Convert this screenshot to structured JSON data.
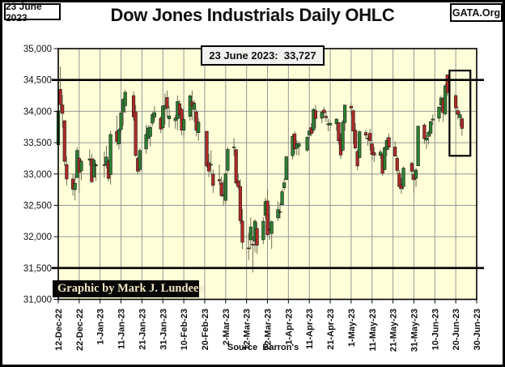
{
  "header": {
    "date_box": "23 June 2023",
    "brand": "GATA.Org",
    "title": "Dow Jones Industrials Daily OHLC"
  },
  "footer": {
    "credit": "Graphic by Mark J. Lundeen",
    "source": "Source  Barron's"
  },
  "chart_data": {
    "type": "ohlc",
    "title": "Dow Jones Industrials Daily OHLC",
    "callout": "23 June 2023:  33,727",
    "last_value": 33727,
    "ylim": [
      31000,
      35000
    ],
    "y_tick_step": 500,
    "y_ticks": [
      "35,000",
      "34,500",
      "34,000",
      "33,500",
      "33,000",
      "32,500",
      "32,000",
      "31,500",
      "31,000"
    ],
    "x_ticks": [
      "12-Dec-22",
      "22-Dec-22",
      "1-Jan-23",
      "11-Jan-23",
      "21-Jan-23",
      "31-Jan-23",
      "10-Feb-23",
      "20-Feb-23",
      "2-Mar-23",
      "12-Mar-23",
      "22-Mar-23",
      "1-Apr-23",
      "11-Apr-23",
      "21-Apr-23",
      "1-May-23",
      "11-May-23",
      "21-May-23",
      "31-May-23",
      "10-Jun-23",
      "20-Jun-23",
      "30-Jun-23"
    ],
    "x_range": [
      "12-Dec-22",
      "30-Jun-23"
    ],
    "grid": true,
    "hlines": [
      34500,
      31500
    ],
    "highlight_box": {
      "date1": "17-Jun-23",
      "date2": "27-Jun-23",
      "value1": 34650,
      "value2": 33290
    },
    "colors": {
      "plot_bg": "#FEFED8",
      "grid": "#969696",
      "frame": "#000000",
      "up": "#2E8032",
      "down": "#AF2B26",
      "wick": "#6E6E58",
      "body_outline": "#1A1A1A",
      "callout_bg": "#F1F1EF",
      "credit_bg": "#050505",
      "credit_fg": "#EFE7C2"
    },
    "candles": [
      [
        "12-Dec-22",
        33465,
        34060,
        33410,
        34005
      ],
      [
        "13-Dec-22",
        34350,
        34712,
        33980,
        34108
      ],
      [
        "14-Dec-22",
        34100,
        34260,
        33740,
        33966
      ],
      [
        "15-Dec-22",
        33850,
        33860,
        33130,
        33202
      ],
      [
        "16-Dec-22",
        33150,
        33280,
        32815,
        32920
      ],
      [
        "19-Dec-22",
        32920,
        33000,
        32655,
        32758
      ],
      [
        "20-Dec-22",
        32750,
        32990,
        32580,
        32850
      ],
      [
        "21-Dec-22",
        32940,
        33430,
        32940,
        33376
      ],
      [
        "22-Dec-22",
        33250,
        33280,
        32700,
        33027
      ],
      [
        "23-Dec-22",
        33050,
        33230,
        32900,
        33204
      ],
      [
        "27-Dec-22",
        33220,
        33390,
        33130,
        33241
      ],
      [
        "28-Dec-22",
        33240,
        33320,
        32860,
        32875
      ],
      [
        "29-Dec-22",
        32950,
        33260,
        32950,
        33221
      ],
      [
        "30-Dec-22",
        33130,
        33180,
        32890,
        33147
      ],
      [
        "3-Jan-23",
        33148,
        33360,
        32940,
        33136
      ],
      [
        "4-Jan-23",
        33150,
        33450,
        33090,
        33270
      ],
      [
        "5-Jan-23",
        33200,
        33230,
        32880,
        32930
      ],
      [
        "6-Jan-23",
        32990,
        33690,
        32830,
        33631
      ],
      [
        "9-Jan-23",
        33680,
        33935,
        33450,
        33517
      ],
      [
        "10-Jan-23",
        33480,
        33730,
        33390,
        33704
      ],
      [
        "11-Jan-23",
        33710,
        34000,
        33660,
        33973
      ],
      [
        "12-Jan-23",
        33990,
        34210,
        33770,
        34190
      ],
      [
        "13-Jan-23",
        34090,
        34342,
        33970,
        34303
      ],
      [
        "17-Jan-23",
        34250,
        34320,
        33850,
        33911
      ],
      [
        "18-Jan-23",
        33990,
        34100,
        33270,
        33297
      ],
      [
        "19-Jan-23",
        33250,
        33290,
        32990,
        33045
      ],
      [
        "20-Jan-23",
        33070,
        33410,
        33020,
        33375
      ],
      [
        "23-Jan-23",
        33400,
        33780,
        33320,
        33630
      ],
      [
        "24-Jan-23",
        33570,
        33780,
        33530,
        33734
      ],
      [
        "25-Jan-23",
        33600,
        33780,
        33440,
        33744
      ],
      [
        "26-Jan-23",
        33810,
        34000,
        33760,
        33949
      ],
      [
        "27-Jan-23",
        33910,
        34080,
        33840,
        33978
      ],
      [
        "30-Jan-23",
        33890,
        33920,
        33650,
        33717
      ],
      [
        "31-Jan-23",
        33740,
        34090,
        33700,
        34086
      ],
      [
        "1-Feb-23",
        34040,
        34280,
        33790,
        34093
      ],
      [
        "2-Feb-23",
        34220,
        34330,
        33900,
        34054
      ],
      [
        "3-Feb-23",
        33880,
        34080,
        33740,
        33926
      ],
      [
        "6-Feb-23",
        33850,
        33940,
        33720,
        33891
      ],
      [
        "7-Feb-23",
        33880,
        34250,
        33700,
        34156
      ],
      [
        "8-Feb-23",
        34120,
        34180,
        33890,
        33949
      ],
      [
        "9-Feb-23",
        34030,
        34060,
        33620,
        33699
      ],
      [
        "10-Feb-23",
        33700,
        33930,
        33590,
        33869
      ],
      [
        "13-Feb-23",
        33920,
        34270,
        33850,
        34246
      ],
      [
        "14-Feb-23",
        34150,
        34331,
        33860,
        34089
      ],
      [
        "15-Feb-23",
        34030,
        34180,
        33830,
        34128
      ],
      [
        "16-Feb-23",
        33990,
        34030,
        33600,
        33697
      ],
      [
        "17-Feb-23",
        33660,
        33890,
        33530,
        33827
      ],
      [
        "21-Feb-23",
        33680,
        33690,
        33100,
        33130
      ],
      [
        "22-Feb-23",
        33180,
        33320,
        32950,
        33045
      ],
      [
        "23-Feb-23",
        33150,
        33380,
        32990,
        33154
      ],
      [
        "24-Feb-23",
        33000,
        33070,
        32700,
        32817
      ],
      [
        "27-Feb-23",
        32910,
        33150,
        32830,
        32889
      ],
      [
        "28-Feb-23",
        32860,
        32960,
        32630,
        32656
      ],
      [
        "1-Mar-23",
        32660,
        32900,
        32500,
        32662
      ],
      [
        "2-Mar-23",
        32580,
        33030,
        32520,
        33003
      ],
      [
        "3-Mar-23",
        33060,
        33430,
        33020,
        33391
      ],
      [
        "6-Mar-23",
        33430,
        33572,
        33290,
        33431
      ],
      [
        "7-Mar-23",
        33390,
        33400,
        32830,
        32856
      ],
      [
        "8-Mar-23",
        32890,
        33000,
        32760,
        32798
      ],
      [
        "9-Mar-23",
        32800,
        32920,
        32200,
        32255
      ],
      [
        "10-Mar-23",
        32250,
        32440,
        31800,
        31910
      ],
      [
        "13-Mar-23",
        31820,
        32060,
        31624,
        31819
      ],
      [
        "14-Mar-23",
        31950,
        32310,
        31800,
        32155
      ],
      [
        "15-Mar-23",
        31880,
        32010,
        31429,
        31875
      ],
      [
        "16-Mar-23",
        31930,
        32280,
        31750,
        32247
      ],
      [
        "17-Mar-23",
        32130,
        32230,
        31727,
        31862
      ],
      [
        "20-Mar-23",
        31950,
        32310,
        31880,
        32245
      ],
      [
        "21-Mar-23",
        32340,
        32620,
        32290,
        32560
      ],
      [
        "22-Mar-23",
        32570,
        32760,
        32010,
        32030
      ],
      [
        "23-Mar-23",
        32120,
        32510,
        31950,
        32105
      ],
      [
        "24-Mar-23",
        32050,
        32260,
        31805,
        32238
      ],
      [
        "27-Mar-23",
        32300,
        32560,
        32250,
        32432
      ],
      [
        "28-Mar-23",
        32400,
        32540,
        32290,
        32394
      ],
      [
        "29-Mar-23",
        32510,
        32760,
        32500,
        32718
      ],
      [
        "30-Mar-23",
        32780,
        32930,
        32740,
        32859
      ],
      [
        "31-Mar-23",
        32910,
        33290,
        32900,
        33274
      ],
      [
        "3-Apr-23",
        33290,
        33640,
        33230,
        33601
      ],
      [
        "4-Apr-23",
        33640,
        33680,
        33320,
        33402
      ],
      [
        "5-Apr-23",
        33410,
        33540,
        33300,
        33483
      ],
      [
        "6-Apr-23",
        33440,
        33520,
        33290,
        33485
      ],
      [
        "10-Apr-23",
        33380,
        33600,
        33350,
        33586
      ],
      [
        "11-Apr-23",
        33620,
        33740,
        33560,
        33685
      ],
      [
        "12-Apr-23",
        33740,
        33810,
        33600,
        33646
      ],
      [
        "13-Apr-23",
        33700,
        34050,
        33660,
        34030
      ],
      [
        "14-Apr-23",
        34010,
        34100,
        33730,
        33886
      ],
      [
        "17-Apr-23",
        33890,
        34010,
        33810,
        33987
      ],
      [
        "18-Apr-23",
        34020,
        34070,
        33900,
        33977
      ],
      [
        "19-Apr-23",
        33920,
        34000,
        33830,
        33897
      ],
      [
        "20-Apr-23",
        33800,
        33880,
        33680,
        33787
      ],
      [
        "21-Apr-23",
        33780,
        33860,
        33690,
        33809
      ],
      [
        "24-Apr-23",
        33800,
        33890,
        33690,
        33875
      ],
      [
        "25-Apr-23",
        33820,
        33830,
        33470,
        33531
      ],
      [
        "26-Apr-23",
        33560,
        33650,
        33240,
        33302
      ],
      [
        "27-Apr-23",
        33380,
        33860,
        33360,
        33826
      ],
      [
        "28-Apr-23",
        33820,
        34110,
        33690,
        34098
      ],
      [
        "1-May-23",
        34080,
        34130,
        33940,
        34052
      ],
      [
        "2-May-23",
        34010,
        34030,
        33480,
        33685
      ],
      [
        "3-May-23",
        33700,
        33810,
        33390,
        33414
      ],
      [
        "4-May-23",
        33360,
        33390,
        33060,
        33128
      ],
      [
        "5-May-23",
        33260,
        33700,
        33260,
        33674
      ],
      [
        "8-May-23",
        33660,
        33710,
        33560,
        33619
      ],
      [
        "9-May-23",
        33570,
        33620,
        33450,
        33562
      ],
      [
        "10-May-23",
        33650,
        33720,
        33380,
        33532
      ],
      [
        "11-May-23",
        33480,
        33530,
        33220,
        33310
      ],
      [
        "12-May-23",
        33340,
        33430,
        33190,
        33301
      ],
      [
        "15-May-23",
        33300,
        33390,
        33240,
        33349
      ],
      [
        "16-May-23",
        33310,
        33330,
        32970,
        33012
      ],
      [
        "17-May-23",
        33070,
        33440,
        33060,
        33421
      ],
      [
        "18-May-23",
        33390,
        33580,
        33290,
        33536
      ],
      [
        "19-May-23",
        33580,
        33650,
        33380,
        33427
      ],
      [
        "22-May-23",
        33430,
        33520,
        33280,
        33286
      ],
      [
        "23-May-23",
        33250,
        33290,
        33010,
        33056
      ],
      [
        "24-May-23",
        33010,
        33060,
        32760,
        32800
      ],
      [
        "25-May-23",
        32830,
        32940,
        32687,
        32765
      ],
      [
        "26-May-23",
        32800,
        33120,
        32750,
        33093
      ],
      [
        "30-May-23",
        33170,
        33200,
        32910,
        33043
      ],
      [
        "31-May-23",
        32990,
        33070,
        32700,
        32908
      ],
      [
        "1-Jun-23",
        32930,
        33100,
        32790,
        33062
      ],
      [
        "2-Jun-23",
        33130,
        33770,
        33130,
        33763
      ],
      [
        "5-Jun-23",
        33780,
        33810,
        33480,
        33563
      ],
      [
        "6-Jun-23",
        33540,
        33610,
        33400,
        33573
      ],
      [
        "7-Jun-23",
        33600,
        33690,
        33470,
        33665
      ],
      [
        "8-Jun-23",
        33650,
        33850,
        33600,
        33834
      ],
      [
        "9-Jun-23",
        33860,
        33950,
        33780,
        33877
      ],
      [
        "12-Jun-23",
        33890,
        34080,
        33830,
        34066
      ],
      [
        "13-Jun-23",
        34100,
        34250,
        34000,
        34212
      ],
      [
        "14-Jun-23",
        34200,
        34230,
        33830,
        33979
      ],
      [
        "15-Jun-23",
        33960,
        34440,
        33930,
        34408
      ],
      [
        "16-Jun-23",
        34580,
        34589,
        34246,
        34299
      ],
      [
        "20-Jun-23",
        34250,
        34280,
        33940,
        34054
      ],
      [
        "21-Jun-23",
        34010,
        34080,
        33870,
        33952
      ],
      [
        "22-Jun-23",
        33900,
        33990,
        33760,
        33947
      ],
      [
        "23-Jun-23",
        33880,
        33910,
        33610,
        33727
      ]
    ]
  }
}
